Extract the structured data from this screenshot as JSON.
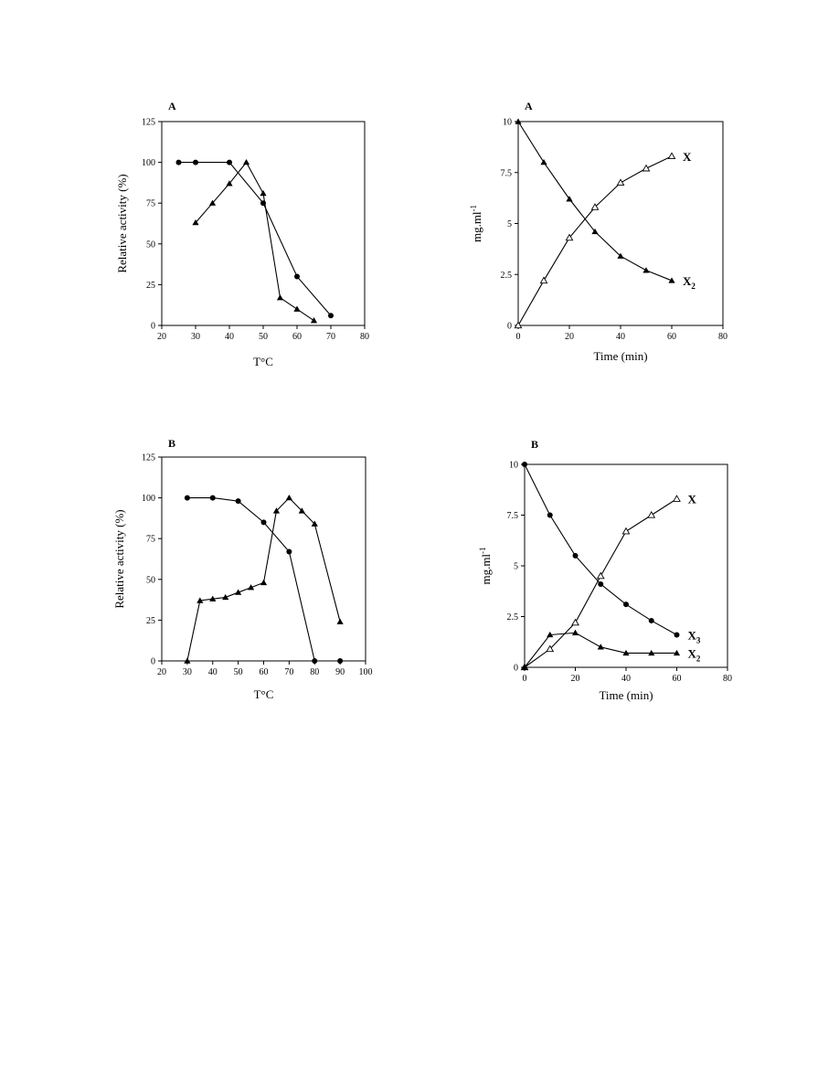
{
  "chart_data": [
    {
      "type": "line",
      "panel_label": "A",
      "xlabel": "T°C",
      "ylabel": "Relative activity (%)",
      "xlim": [
        20,
        80
      ],
      "ylim": [
        0,
        125
      ],
      "x_ticks": [
        "20",
        "30",
        "40",
        "50",
        "60",
        "70",
        "80"
      ],
      "y_ticks": [
        "0",
        "25",
        "50",
        "75",
        "100",
        "125"
      ],
      "grid": false,
      "series": [
        {
          "marker": "circle",
          "x": [
            25,
            30,
            40,
            50,
            60,
            70
          ],
          "y": [
            100,
            100,
            100,
            75,
            30,
            6
          ]
        },
        {
          "marker": "triangle-filled",
          "x": [
            30,
            35,
            40,
            45,
            50,
            55,
            60,
            65
          ],
          "y": [
            63,
            75,
            87,
            100,
            81,
            17,
            10,
            3
          ]
        }
      ]
    },
    {
      "type": "line",
      "panel_label": "A",
      "xlabel": "Time (min)",
      "ylabel": "mg.ml-1",
      "xlim": [
        0,
        80
      ],
      "ylim": [
        0,
        10
      ],
      "x_ticks": [
        "0",
        "20",
        "40",
        "60",
        "80"
      ],
      "y_ticks": [
        "0",
        "2.5",
        "5",
        "7.5",
        "10"
      ],
      "grid": false,
      "series": [
        {
          "name": "X",
          "marker": "triangle-open",
          "x": [
            0,
            10,
            20,
            30,
            40,
            50,
            60
          ],
          "y": [
            0,
            2.2,
            4.3,
            5.8,
            7.0,
            7.7,
            8.3
          ]
        },
        {
          "name": "X2",
          "marker": "triangle-filled",
          "x": [
            0,
            10,
            20,
            30,
            40,
            50,
            60
          ],
          "y": [
            10,
            8.0,
            6.2,
            4.6,
            3.4,
            2.7,
            2.2
          ]
        }
      ]
    },
    {
      "type": "line",
      "panel_label": "B",
      "xlabel": "T°C",
      "ylabel": "Relative activity (%)",
      "xlim": [
        20,
        100
      ],
      "ylim": [
        0,
        125
      ],
      "x_ticks": [
        "20",
        "30",
        "40",
        "50",
        "60",
        "70",
        "80",
        "90",
        "100"
      ],
      "y_ticks": [
        "0",
        "25",
        "50",
        "75",
        "100",
        "125"
      ],
      "grid": false,
      "series": [
        {
          "marker": "circle",
          "x": [
            30,
            40,
            50,
            60,
            70,
            80,
            90
          ],
          "y": [
            100,
            100,
            98,
            85,
            67,
            0,
            0
          ]
        },
        {
          "marker": "triangle-filled",
          "x": [
            30,
            35,
            40,
            45,
            50,
            55,
            60,
            65,
            70,
            75,
            80,
            90
          ],
          "y": [
            0,
            37,
            38,
            39,
            42,
            45,
            48,
            92,
            100,
            92,
            84,
            24
          ]
        }
      ]
    },
    {
      "type": "line",
      "panel_label": "B",
      "xlabel": "Time (min)",
      "ylabel": "mg.ml-1",
      "xlim": [
        0,
        80
      ],
      "ylim": [
        0,
        10
      ],
      "x_ticks": [
        "0",
        "20",
        "40",
        "60",
        "80"
      ],
      "y_ticks": [
        "0",
        "2.5",
        "5",
        "7.5",
        "10"
      ],
      "grid": false,
      "series": [
        {
          "name": "X",
          "marker": "triangle-open",
          "x": [
            0,
            10,
            20,
            30,
            40,
            50,
            60
          ],
          "y": [
            0,
            0.9,
            2.2,
            4.5,
            6.7,
            7.5,
            8.3
          ]
        },
        {
          "name": "X3",
          "marker": "circle",
          "x": [
            0,
            10,
            20,
            30,
            40,
            50,
            60
          ],
          "y": [
            10,
            7.5,
            5.5,
            4.1,
            3.1,
            2.3,
            1.6
          ]
        },
        {
          "name": "X2",
          "marker": "triangle-filled",
          "x": [
            0,
            10,
            20,
            30,
            40,
            50,
            60
          ],
          "y": [
            0,
            1.6,
            1.7,
            1.0,
            0.7,
            0.7,
            0.7
          ]
        }
      ]
    }
  ]
}
